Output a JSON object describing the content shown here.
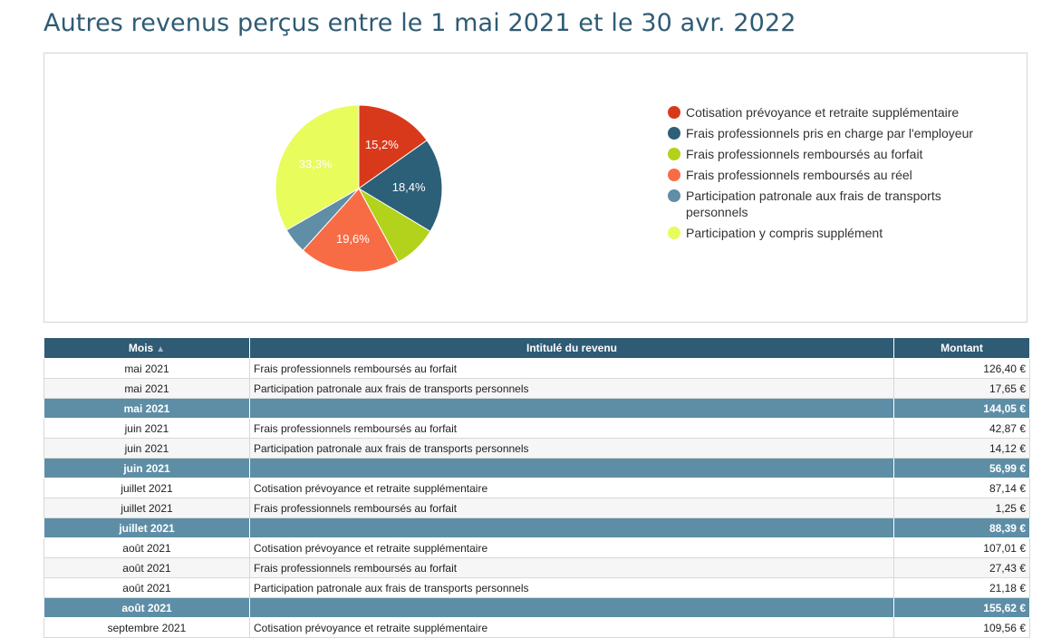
{
  "page": {
    "title": "Autres revenus perçus entre le 1 mai 2021 et le 30 avr. 2022"
  },
  "chart_data": {
    "type": "pie",
    "title": "",
    "slices": [
      {
        "name": "Cotisation prévoyance et retraite supplémentaire",
        "value": 15.2,
        "label": "15,2%",
        "color": "#d9391b",
        "show_label": true
      },
      {
        "name": "Frais professionnels pris en charge par l'employeur",
        "value": 18.4,
        "label": "18,4%",
        "color": "#2c5f78",
        "show_label": true
      },
      {
        "name": "Frais professionnels remboursés au forfait",
        "value": 8.5,
        "label": "",
        "color": "#b2d21c",
        "show_label": false
      },
      {
        "name": "Frais professionnels remboursés au réel",
        "value": 19.6,
        "label": "19,6%",
        "color": "#f86c45",
        "show_label": true
      },
      {
        "name": "Participation patronale aux frais de transports personnels",
        "value": 5.0,
        "label": "",
        "color": "#5f8ea6",
        "show_label": false
      },
      {
        "name": "Participation y compris supplément",
        "value": 33.3,
        "label": "33,3%",
        "color": "#e8fc5c",
        "show_label": true
      }
    ],
    "legend": {
      "position": "right",
      "items": [
        {
          "label": "Cotisation prévoyance et retraite supplémentaire",
          "color": "#d9391b"
        },
        {
          "label": "Frais professionnels pris en charge par l'employeur",
          "color": "#2c5f78"
        },
        {
          "label": "Frais professionnels remboursés au forfait",
          "color": "#b2d21c"
        },
        {
          "label": "Frais professionnels remboursés au réel",
          "color": "#f86c45"
        },
        {
          "label": "Participation patronale aux frais de transports personnels",
          "color": "#5f8ea6"
        },
        {
          "label": "Participation y compris supplément",
          "color": "#e8fc5c"
        }
      ]
    }
  },
  "table": {
    "headers": {
      "month": "Mois",
      "sort_arrow": "▲",
      "label": "Intitulé du revenu",
      "amount": "Montant"
    },
    "rows": [
      {
        "type": "row",
        "month": "mai 2021",
        "label": "Frais professionnels remboursés au forfait",
        "amount": "126,40 €"
      },
      {
        "type": "row",
        "month": "mai 2021",
        "label": "Participation patronale aux frais de transports personnels",
        "amount": "17,65 €"
      },
      {
        "type": "subtotal",
        "month": "mai 2021",
        "label": "",
        "amount": "144,05 €"
      },
      {
        "type": "row",
        "month": "juin 2021",
        "label": "Frais professionnels remboursés au forfait",
        "amount": "42,87 €"
      },
      {
        "type": "row",
        "month": "juin 2021",
        "label": "Participation patronale aux frais de transports personnels",
        "amount": "14,12 €"
      },
      {
        "type": "subtotal",
        "month": "juin 2021",
        "label": "",
        "amount": "56,99 €"
      },
      {
        "type": "row",
        "month": "juillet 2021",
        "label": "Cotisation prévoyance et retraite supplémentaire",
        "amount": "87,14 €"
      },
      {
        "type": "row",
        "month": "juillet 2021",
        "label": "Frais professionnels remboursés au forfait",
        "amount": "1,25 €"
      },
      {
        "type": "subtotal",
        "month": "juillet 2021",
        "label": "",
        "amount": "88,39 €"
      },
      {
        "type": "row",
        "month": "août 2021",
        "label": "Cotisation prévoyance et retraite supplémentaire",
        "amount": "107,01 €"
      },
      {
        "type": "row",
        "month": "août 2021",
        "label": "Frais professionnels remboursés au forfait",
        "amount": "27,43 €"
      },
      {
        "type": "row",
        "month": "août 2021",
        "label": "Participation patronale aux frais de transports personnels",
        "amount": "21,18 €"
      },
      {
        "type": "subtotal",
        "month": "août 2021",
        "label": "",
        "amount": "155,62 €"
      },
      {
        "type": "row",
        "month": "septembre 2021",
        "label": "Cotisation prévoyance et retraite supplémentaire",
        "amount": "109,56 €"
      }
    ]
  }
}
